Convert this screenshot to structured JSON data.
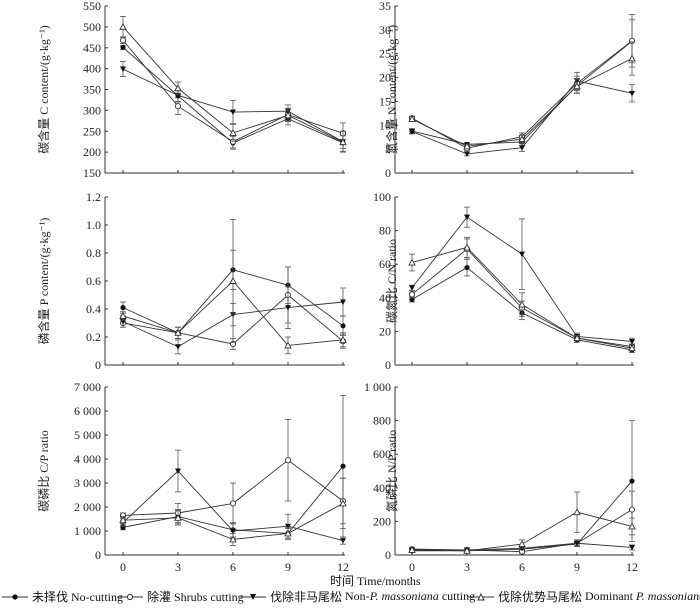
{
  "x_axis_label": "时间 Time/months",
  "legend": [
    {
      "key": "no",
      "marker": "filled-circle",
      "label": "未择伐 No-cutting"
    },
    {
      "key": "shrub",
      "marker": "open-circle",
      "label": "除灌 Shrubs cutting"
    },
    {
      "key": "nonp",
      "marker": "filled-triangle-down",
      "label_cn": "伐除非马尾松",
      "label_en_pre": "Non-",
      "label_en_it": "P. massoniana",
      "label_en_post": " cutting"
    },
    {
      "key": "dom",
      "marker": "open-triangle-up",
      "label_cn": "伐除优势马尾松",
      "label_en_pre": "Dominant ",
      "label_en_it": "P. massoniana",
      "label_en_post": " cutting"
    }
  ],
  "chart_data": [
    {
      "id": "C",
      "type": "line",
      "ylabel": "碳含量  C content/(g·kg⁻¹)",
      "x": [
        0,
        3,
        6,
        9,
        12
      ],
      "xticks_shown": false,
      "ylim": [
        150,
        550
      ],
      "yticks": [
        150,
        200,
        250,
        300,
        350,
        400,
        450,
        500,
        550
      ],
      "ytick_labels": [
        "150",
        "200",
        "250",
        "300",
        "350",
        "400",
        "450",
        "500",
        "550"
      ],
      "series": [
        {
          "name": "未择伐 No-cutting",
          "key": "no",
          "values": [
            451,
            335,
            222,
            280,
            222
          ],
          "err": [
            5,
            15,
            15,
            15,
            20
          ]
        },
        {
          "name": "除灌 Shrubs cutting",
          "key": "shrub",
          "values": [
            468,
            310,
            225,
            290,
            245
          ],
          "err": [
            8,
            20,
            15,
            15,
            25
          ]
        },
        {
          "name": "伐除非马尾松 Non-P. massoniana cutting",
          "key": "nonp",
          "values": [
            399,
            336,
            296,
            298,
            225
          ],
          "err": [
            18,
            15,
            28,
            15,
            25
          ]
        },
        {
          "name": "伐除优势马尾松 Dominant P. massoniana cutting",
          "key": "dom",
          "values": [
            500,
            353,
            246,
            288,
            224
          ],
          "err": [
            25,
            15,
            20,
            15,
            15
          ]
        }
      ]
    },
    {
      "id": "N",
      "type": "line",
      "ylabel": "氮含量  N content/(g·kg⁻¹)",
      "x": [
        0,
        3,
        6,
        9,
        12
      ],
      "xticks_shown": false,
      "ylim": [
        0,
        35
      ],
      "yticks": [
        0,
        5,
        10,
        15,
        20,
        25,
        30,
        35
      ],
      "ytick_labels": [
        "0",
        "5",
        "10",
        "15",
        "20",
        "25",
        "30",
        "35"
      ],
      "series": [
        {
          "name": "未择伐 No-cutting",
          "key": "no",
          "values": [
            8.8,
            6.0,
            6.5,
            18.3,
            27.6
          ],
          "err": [
            0.5,
            0.4,
            0.8,
            1.5,
            4.5
          ]
        },
        {
          "name": "除灌 Shrubs cutting",
          "key": "shrub",
          "values": [
            11.5,
            5.2,
            7.6,
            18.8,
            27.7
          ],
          "err": [
            0.4,
            0.4,
            0.8,
            1.5,
            5.5
          ]
        },
        {
          "name": "伐除非马尾松 Non-P. massoniana cutting",
          "key": "nonp",
          "values": [
            8.7,
            4.0,
            5.3,
            19.3,
            16.7
          ],
          "err": [
            0.5,
            0.4,
            0.8,
            1.8,
            1.8
          ]
        },
        {
          "name": "伐除优势马尾松 Dominant P. massoniana cutting",
          "key": "dom",
          "values": [
            11.3,
            5.6,
            7.1,
            18.2,
            24.0
          ],
          "err": [
            0.5,
            0.4,
            0.8,
            1.5,
            3.5
          ]
        }
      ]
    },
    {
      "id": "P",
      "type": "line",
      "ylabel": "磷含量  P content/(g·kg⁻¹)",
      "x": [
        0,
        3,
        6,
        9,
        12
      ],
      "xticks_shown": false,
      "ylim": [
        0,
        1.2
      ],
      "yticks": [
        0,
        0.2,
        0.4,
        0.6,
        0.8,
        1.0,
        1.2
      ],
      "ytick_labels": [
        "0",
        "0.2",
        "0.4",
        "0.6",
        "0.8",
        "1.0",
        "1.2"
      ],
      "series": [
        {
          "name": "未择伐 No-cutting",
          "key": "no",
          "values": [
            0.41,
            0.23,
            0.68,
            0.57,
            0.28
          ],
          "err": [
            0.04,
            0.04,
            0.14,
            0.13,
            0.07
          ]
        },
        {
          "name": "除灌 Shrubs cutting",
          "key": "shrub",
          "values": [
            0.3,
            0.23,
            0.15,
            0.5,
            0.17
          ],
          "err": [
            0.03,
            0.04,
            0.04,
            0.2,
            0.05
          ]
        },
        {
          "name": "伐除非马尾松 Non-P. massoniana cutting",
          "key": "nonp",
          "values": [
            0.31,
            0.13,
            0.36,
            0.41,
            0.45
          ],
          "err": [
            0.04,
            0.05,
            0.08,
            0.15,
            0.1
          ]
        },
        {
          "name": "伐除优势马尾松 Dominant P. massoniana cutting",
          "key": "dom",
          "values": [
            0.35,
            0.23,
            0.6,
            0.14,
            0.18
          ],
          "err": [
            0.03,
            0.04,
            0.44,
            0.06,
            0.05
          ]
        }
      ]
    },
    {
      "id": "CN",
      "type": "line",
      "ylabel": "碳氮比  C/N ratio",
      "x": [
        0,
        3,
        6,
        9,
        12
      ],
      "xticks_shown": false,
      "ylim": [
        0,
        100
      ],
      "yticks": [
        0,
        20,
        40,
        60,
        80,
        100
      ],
      "ytick_labels": [
        "0",
        "20",
        "40",
        "60",
        "80",
        "100"
      ],
      "series": [
        {
          "name": "未择伐 No-cutting",
          "key": "no",
          "values": [
            39,
            58,
            31,
            15,
            9
          ],
          "err": [
            1.5,
            5,
            4,
            1.5,
            1.5
          ]
        },
        {
          "name": "除灌 Shrubs cutting",
          "key": "shrub",
          "values": [
            42,
            69,
            34,
            16,
            11
          ],
          "err": [
            2,
            6,
            4,
            1.5,
            1.5
          ]
        },
        {
          "name": "伐除非马尾松 Non-P. massoniana cutting",
          "key": "nonp",
          "values": [
            46,
            88,
            66,
            17,
            14
          ],
          "err": [
            1.5,
            6,
            21,
            2,
            2
          ]
        },
        {
          "name": "伐除优势马尾松 Dominant P. massoniana cutting",
          "key": "dom",
          "values": [
            61,
            70,
            36,
            16,
            10
          ],
          "err": [
            5,
            6,
            7,
            1.5,
            1.5
          ]
        }
      ]
    },
    {
      "id": "CP",
      "type": "line",
      "ylabel": "碳磷比  C/P ratio",
      "x": [
        0,
        3,
        6,
        9,
        12
      ],
      "xticks_shown": true,
      "xtick_labels": [
        "0",
        "3",
        "6",
        "9",
        "12"
      ],
      "ylim": [
        0,
        7000
      ],
      "yticks": [
        0,
        1000,
        2000,
        3000,
        4000,
        5000,
        6000,
        7000
      ],
      "ytick_labels": [
        "0",
        "1 000",
        "2 000",
        "3 000",
        "4 000",
        "5 000",
        "6 000",
        "7 000"
      ],
      "series": [
        {
          "name": "未择伐 No-cutting",
          "key": "no",
          "values": [
            1150,
            1600,
            1050,
            900,
            3700
          ],
          "err": [
            100,
            300,
            300,
            200,
            2950
          ]
        },
        {
          "name": "除灌 Shrubs cutting",
          "key": "shrub",
          "values": [
            1650,
            1750,
            2150,
            3950,
            2250
          ],
          "err": [
            100,
            400,
            850,
            1700,
            950
          ]
        },
        {
          "name": "伐除非马尾松 Non-P. massoniana cutting",
          "key": "nonp",
          "values": [
            1350,
            3500,
            1000,
            1200,
            600
          ],
          "err": [
            150,
            870,
            300,
            500,
            150
          ]
        },
        {
          "name": "伐除优势马尾松 Dominant P. massoniana cutting",
          "key": "dom",
          "values": [
            1450,
            1550,
            650,
            900,
            2150
          ],
          "err": [
            150,
            300,
            250,
            250,
            1050
          ]
        }
      ]
    },
    {
      "id": "NP",
      "type": "line",
      "ylabel": "氮磷比  N/P ratio",
      "x": [
        0,
        3,
        6,
        9,
        12
      ],
      "xticks_shown": true,
      "xtick_labels": [
        "0",
        "3",
        "6",
        "9",
        "12"
      ],
      "ylim": [
        0,
        1000
      ],
      "yticks": [
        0,
        200,
        400,
        600,
        800,
        1000
      ],
      "ytick_labels": [
        "0",
        "200",
        "400",
        "600",
        "800",
        "1 000"
      ],
      "series": [
        {
          "name": "未择伐 No-cutting",
          "key": "no",
          "values": [
            25,
            25,
            35,
            65,
            440
          ],
          "err": [
            5,
            5,
            10,
            15,
            360
          ]
        },
        {
          "name": "除灌 Shrubs cutting",
          "key": "shrub",
          "values": [
            35,
            30,
            20,
            70,
            270
          ],
          "err": [
            5,
            5,
            10,
            20,
            110
          ]
        },
        {
          "name": "伐除非马尾松 Non-P. massoniana cutting",
          "key": "nonp",
          "values": [
            30,
            30,
            40,
            70,
            45
          ],
          "err": [
            5,
            5,
            10,
            20,
            15
          ]
        },
        {
          "name": "伐除优势马尾松 Dominant P. massoniana cutting",
          "key": "dom",
          "values": [
            30,
            25,
            65,
            255,
            170
          ],
          "err": [
            5,
            5,
            25,
            120,
            50
          ]
        }
      ]
    }
  ]
}
